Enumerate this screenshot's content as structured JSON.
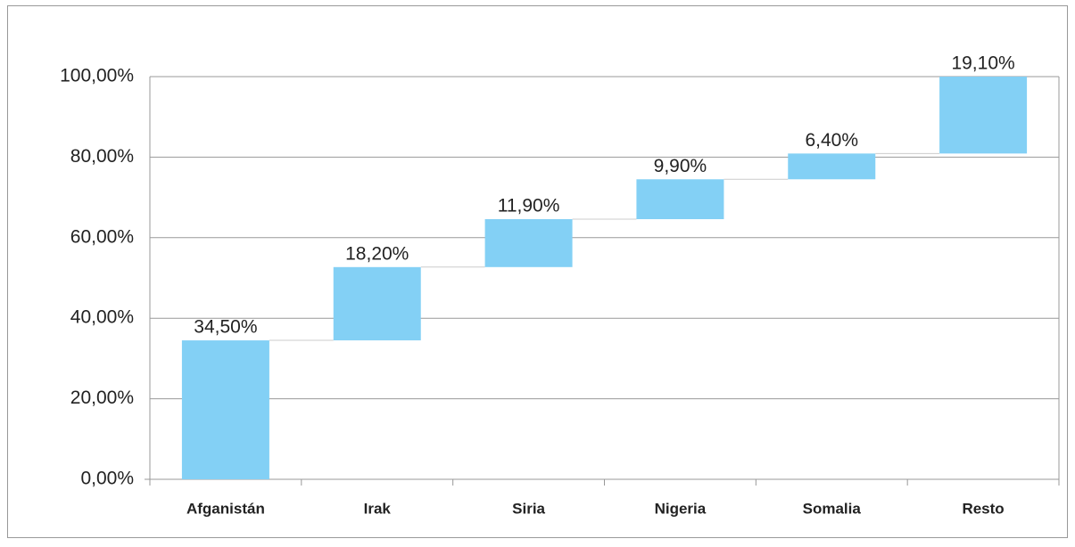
{
  "chart_data": {
    "type": "waterfall",
    "categories": [
      "Afganistán",
      "Irak",
      "Siria",
      "Nigeria",
      "Somalia",
      "Resto"
    ],
    "values": [
      34.5,
      18.2,
      11.9,
      9.9,
      6.4,
      19.1
    ],
    "value_labels": [
      "34,50%",
      "18,20%",
      "11,90%",
      "9,90%",
      "6,40%",
      "19,10%"
    ],
    "color": "#83d0f5",
    "ylim": [
      0,
      100
    ],
    "yticks": [
      {
        "value": 0,
        "label": "0,00%"
      },
      {
        "value": 20,
        "label": "20,00%"
      },
      {
        "value": 40,
        "label": "40,00%"
      },
      {
        "value": 60,
        "label": "60,00%"
      },
      {
        "value": 80,
        "label": "80,00%"
      },
      {
        "value": 100,
        "label": "100,00%"
      }
    ],
    "grid": true
  }
}
